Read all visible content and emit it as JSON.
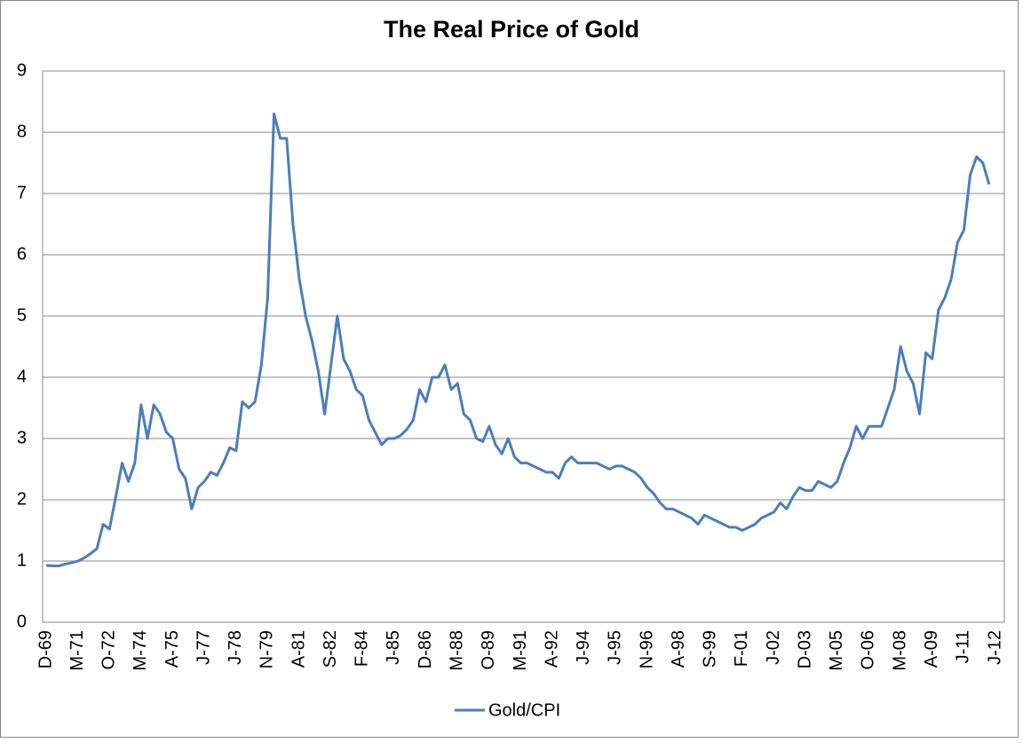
{
  "chart_data": {
    "type": "line",
    "title": "The Real Price of Gold",
    "categories": [
      "D-69",
      null,
      null,
      null,
      null,
      "M-71",
      null,
      null,
      null,
      null,
      "O-72",
      null,
      null,
      null,
      null,
      "M-74",
      null,
      null,
      null,
      null,
      "A-75",
      null,
      null,
      null,
      null,
      "J-77",
      null,
      null,
      null,
      null,
      "J-78",
      null,
      null,
      null,
      null,
      "N-79",
      null,
      null,
      null,
      null,
      "A-81",
      null,
      null,
      null,
      null,
      "S-82",
      null,
      null,
      null,
      null,
      "F-84",
      null,
      null,
      null,
      null,
      "J-85",
      null,
      null,
      null,
      null,
      "D-86",
      null,
      null,
      null,
      null,
      "M-88",
      null,
      null,
      null,
      null,
      "O-89",
      null,
      null,
      null,
      null,
      "M-91",
      null,
      null,
      null,
      null,
      "A-92",
      null,
      null,
      null,
      null,
      "J-94",
      null,
      null,
      null,
      null,
      "J-95",
      null,
      null,
      null,
      null,
      "N-96",
      null,
      null,
      null,
      null,
      "A-98",
      null,
      null,
      null,
      null,
      "S-99",
      null,
      null,
      null,
      null,
      "F-01",
      null,
      null,
      null,
      null,
      "J-02",
      null,
      null,
      null,
      null,
      "D-03",
      null,
      null,
      null,
      null,
      "M-05",
      null,
      null,
      null,
      null,
      "O-06",
      null,
      null,
      null,
      null,
      "M-08",
      null,
      null,
      null,
      null,
      "A-09",
      null,
      null,
      null,
      null,
      "J-11",
      null,
      null,
      null,
      null,
      "J-12"
    ],
    "series": [
      {
        "name": "Gold/CPI",
        "color": "#4a7ebb",
        "values": [
          0.93,
          0.92,
          0.92,
          0.95,
          0.97,
          1.0,
          1.05,
          1.12,
          1.2,
          1.6,
          1.52,
          2.05,
          2.6,
          2.3,
          2.6,
          3.55,
          3.0,
          3.55,
          3.4,
          3.1,
          3.0,
          2.5,
          2.35,
          1.85,
          2.2,
          2.3,
          2.45,
          2.4,
          2.6,
          2.85,
          2.8,
          3.6,
          3.5,
          3.6,
          4.2,
          5.3,
          8.3,
          7.9,
          7.9,
          6.5,
          5.6,
          5.0,
          4.6,
          4.1,
          3.4,
          4.2,
          5.0,
          4.3,
          4.1,
          3.8,
          3.7,
          3.3,
          3.1,
          2.9,
          3.0,
          3.0,
          3.05,
          3.15,
          3.3,
          3.8,
          3.6,
          4.0,
          4.0,
          4.2,
          3.8,
          3.9,
          3.4,
          3.3,
          3.0,
          2.95,
          3.2,
          2.9,
          2.75,
          3.0,
          2.7,
          2.6,
          2.6,
          2.55,
          2.5,
          2.45,
          2.45,
          2.35,
          2.6,
          2.7,
          2.6,
          2.6,
          2.6,
          2.6,
          2.55,
          2.5,
          2.55,
          2.55,
          2.5,
          2.45,
          2.35,
          2.2,
          2.1,
          1.95,
          1.85,
          1.85,
          1.8,
          1.75,
          1.7,
          1.6,
          1.75,
          1.7,
          1.65,
          1.6,
          1.55,
          1.55,
          1.5,
          1.55,
          1.6,
          1.7,
          1.75,
          1.8,
          1.95,
          1.85,
          2.05,
          2.2,
          2.15,
          2.15,
          2.3,
          2.25,
          2.2,
          2.3,
          2.6,
          2.85,
          3.2,
          3.0,
          3.2,
          3.2,
          3.2,
          3.5,
          3.8,
          4.5,
          4.1,
          3.9,
          3.4,
          4.4,
          4.3,
          5.1,
          5.3,
          5.6,
          6.2,
          6.4,
          7.3,
          7.6,
          7.5,
          7.15,
          null
        ]
      }
    ],
    "ylim": [
      0,
      9
    ],
    "yticks": [
      0,
      1,
      2,
      3,
      4,
      5,
      6,
      7,
      8,
      9
    ],
    "grid": true,
    "legend": "bottom"
  }
}
